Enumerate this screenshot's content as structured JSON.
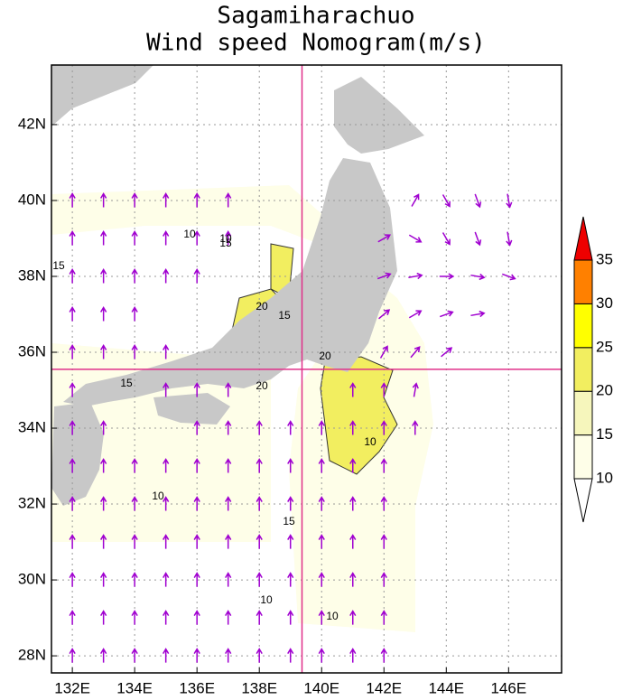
{
  "title": [
    "Sagamiharachuo",
    "Wind speed Nomogram(m/s)"
  ],
  "map": {
    "lonlim": [
      131.33,
      147.7
    ],
    "latlim": [
      27.55,
      43.57
    ],
    "xticks": [
      {
        "value": 132,
        "label": "132E"
      },
      {
        "value": 134,
        "label": "134E"
      },
      {
        "value": 136,
        "label": "136E"
      },
      {
        "value": 138,
        "label": "138E"
      },
      {
        "value": 140,
        "label": "140E"
      },
      {
        "value": 142,
        "label": "142E"
      },
      {
        "value": 144,
        "label": "144E"
      },
      {
        "value": 146,
        "label": "146E"
      }
    ],
    "yticks": [
      {
        "value": 28,
        "label": "28N"
      },
      {
        "value": 30,
        "label": "30N"
      },
      {
        "value": 32,
        "label": "32N"
      },
      {
        "value": 34,
        "label": "34N"
      },
      {
        "value": 36,
        "label": "36N"
      },
      {
        "value": 38,
        "label": "38N"
      },
      {
        "value": 40,
        "label": "40N"
      },
      {
        "value": 42,
        "label": "42N"
      }
    ],
    "grid": true,
    "crosshair": {
      "lon": 139.37,
      "lat": 35.55,
      "color": "#e0308a"
    },
    "wind": {
      "color": "#a000d0",
      "lons": [
        132,
        133,
        134,
        135,
        136,
        137,
        138,
        139,
        140,
        141,
        142,
        143,
        144,
        145,
        146
      ],
      "lats": [
        40,
        39,
        38,
        37,
        36,
        35,
        34,
        33,
        32,
        31,
        30,
        29,
        28
      ],
      "direction": [
        [
          0,
          0,
          0,
          0,
          0,
          0,
          null,
          null,
          null,
          null,
          null,
          30,
          150,
          160,
          170
        ],
        [
          0,
          0,
          0,
          0,
          0,
          0,
          null,
          null,
          null,
          null,
          60,
          120,
          150,
          160,
          170
        ],
        [
          0,
          0,
          0,
          0,
          0,
          null,
          null,
          null,
          null,
          null,
          70,
          80,
          90,
          100,
          110
        ],
        [
          0,
          0,
          0,
          null,
          null,
          null,
          null,
          null,
          null,
          null,
          50,
          60,
          70,
          80,
          null
        ],
        [
          0,
          0,
          0,
          0,
          null,
          null,
          null,
          null,
          null,
          null,
          30,
          40,
          50,
          null,
          null
        ],
        [
          0,
          null,
          null,
          0,
          0,
          0,
          null,
          null,
          null,
          0,
          0,
          10,
          null,
          null,
          null
        ],
        [
          0,
          0,
          null,
          null,
          0,
          0,
          0,
          0,
          0,
          0,
          0,
          0,
          null,
          null,
          null
        ],
        [
          0,
          0,
          0,
          0,
          0,
          0,
          0,
          0,
          0,
          0,
          0,
          null,
          null,
          null,
          null
        ],
        [
          0,
          0,
          0,
          0,
          0,
          0,
          0,
          0,
          0,
          0,
          0,
          null,
          null,
          null,
          null
        ],
        [
          0,
          0,
          0,
          0,
          0,
          0,
          0,
          0,
          0,
          0,
          0,
          null,
          null,
          null,
          null
        ],
        [
          0,
          0,
          0,
          0,
          0,
          0,
          0,
          0,
          0,
          0,
          0,
          null,
          null,
          null,
          null
        ],
        [
          0,
          0,
          0,
          0,
          0,
          0,
          0,
          0,
          0,
          0,
          0,
          null,
          null,
          null,
          null
        ],
        [
          0,
          0,
          0,
          0,
          0,
          0,
          0,
          0,
          0,
          0,
          0,
          null,
          null,
          null,
          null
        ]
      ]
    },
    "contour_labels": [
      10,
      15,
      20,
      10,
      15,
      20,
      15,
      10,
      15,
      20,
      10,
      15,
      10,
      10
    ]
  },
  "colorbar": {
    "levels": [
      10,
      15,
      20,
      25,
      30,
      35
    ],
    "colors": [
      "#ffffff",
      "#fefee8",
      "#f6f6bc",
      "#f2ee60",
      "#ffff00",
      "#ff8000",
      "#ee0000"
    ]
  }
}
